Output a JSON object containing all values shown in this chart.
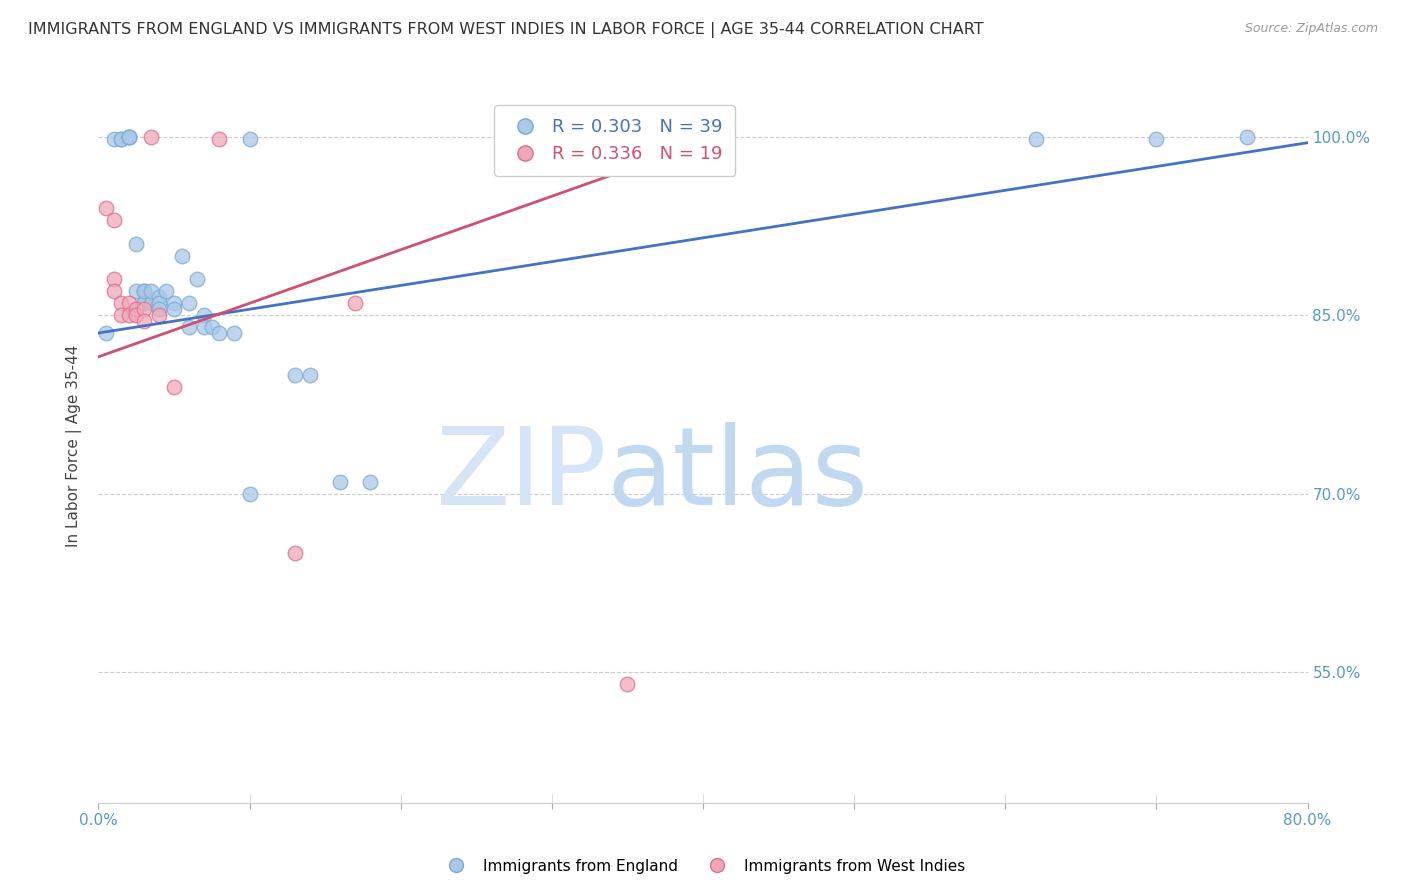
{
  "title": "IMMIGRANTS FROM ENGLAND VS IMMIGRANTS FROM WEST INDIES IN LABOR FORCE | AGE 35-44 CORRELATION CHART",
  "source": "Source: ZipAtlas.com",
  "ylabel": "In Labor Force | Age 35-44",
  "xlim": [
    0.0,
    0.8
  ],
  "ylim": [
    0.44,
    1.04
  ],
  "yticks": [
    0.55,
    0.7,
    0.85,
    1.0
  ],
  "ytick_labels": [
    "55.0%",
    "70.0%",
    "85.0%",
    "100.0%"
  ],
  "xticks": [
    0.0,
    0.1,
    0.2,
    0.3,
    0.4,
    0.5,
    0.6,
    0.7,
    0.8
  ],
  "xtick_labels": [
    "0.0%",
    "",
    "",
    "",
    "",
    "",
    "",
    "",
    "80.0%"
  ],
  "blue_color": "#aac8e8",
  "pink_color": "#f0a8b8",
  "blue_edge_color": "#7aaad0",
  "pink_edge_color": "#d87090",
  "blue_line_color": "#4472c4",
  "pink_line_color": "#d05070",
  "r_blue": 0.303,
  "n_blue": 39,
  "r_pink": 0.336,
  "n_pink": 19,
  "watermark": "ZIPatlas",
  "watermark_color": "#d0dff0",
  "blue_scatter_x": [
    0.005,
    0.01,
    0.015,
    0.015,
    0.02,
    0.02,
    0.02,
    0.025,
    0.025,
    0.03,
    0.03,
    0.03,
    0.03,
    0.035,
    0.035,
    0.04,
    0.04,
    0.04,
    0.045,
    0.05,
    0.05,
    0.055,
    0.06,
    0.06,
    0.065,
    0.07,
    0.07,
    0.075,
    0.08,
    0.09,
    0.1,
    0.1,
    0.13,
    0.14,
    0.16,
    0.18,
    0.62,
    0.7,
    0.76
  ],
  "blue_scatter_y": [
    0.835,
    0.998,
    0.998,
    0.998,
    1.0,
    1.0,
    1.0,
    0.87,
    0.91,
    0.87,
    0.86,
    0.86,
    0.87,
    0.86,
    0.87,
    0.865,
    0.86,
    0.855,
    0.87,
    0.86,
    0.855,
    0.9,
    0.86,
    0.84,
    0.88,
    0.85,
    0.84,
    0.84,
    0.835,
    0.835,
    0.7,
    0.998,
    0.8,
    0.8,
    0.71,
    0.71,
    0.998,
    0.998,
    1.0
  ],
  "pink_scatter_x": [
    0.005,
    0.01,
    0.01,
    0.01,
    0.015,
    0.015,
    0.02,
    0.02,
    0.025,
    0.025,
    0.03,
    0.03,
    0.035,
    0.04,
    0.05,
    0.08,
    0.13,
    0.17,
    0.35
  ],
  "pink_scatter_y": [
    0.94,
    0.93,
    0.88,
    0.87,
    0.86,
    0.85,
    0.86,
    0.85,
    0.855,
    0.85,
    0.855,
    0.845,
    1.0,
    0.85,
    0.79,
    0.998,
    0.65,
    0.86,
    0.54
  ],
  "blue_line_x": [
    0.0,
    0.8
  ],
  "blue_line_y": [
    0.835,
    0.995
  ],
  "pink_line_x": [
    0.0,
    0.4
  ],
  "pink_line_y": [
    0.815,
    0.995
  ],
  "marker_size": 110,
  "figsize": [
    14.06,
    8.92
  ],
  "dpi": 100,
  "axis_color": "#5599cc",
  "tick_label_color": "#5599cc",
  "legend_fontsize": 13,
  "title_fontsize": 11.5,
  "bottom_legend_label_blue": "Immigrants from England",
  "bottom_legend_label_pink": "Immigrants from West Indies"
}
